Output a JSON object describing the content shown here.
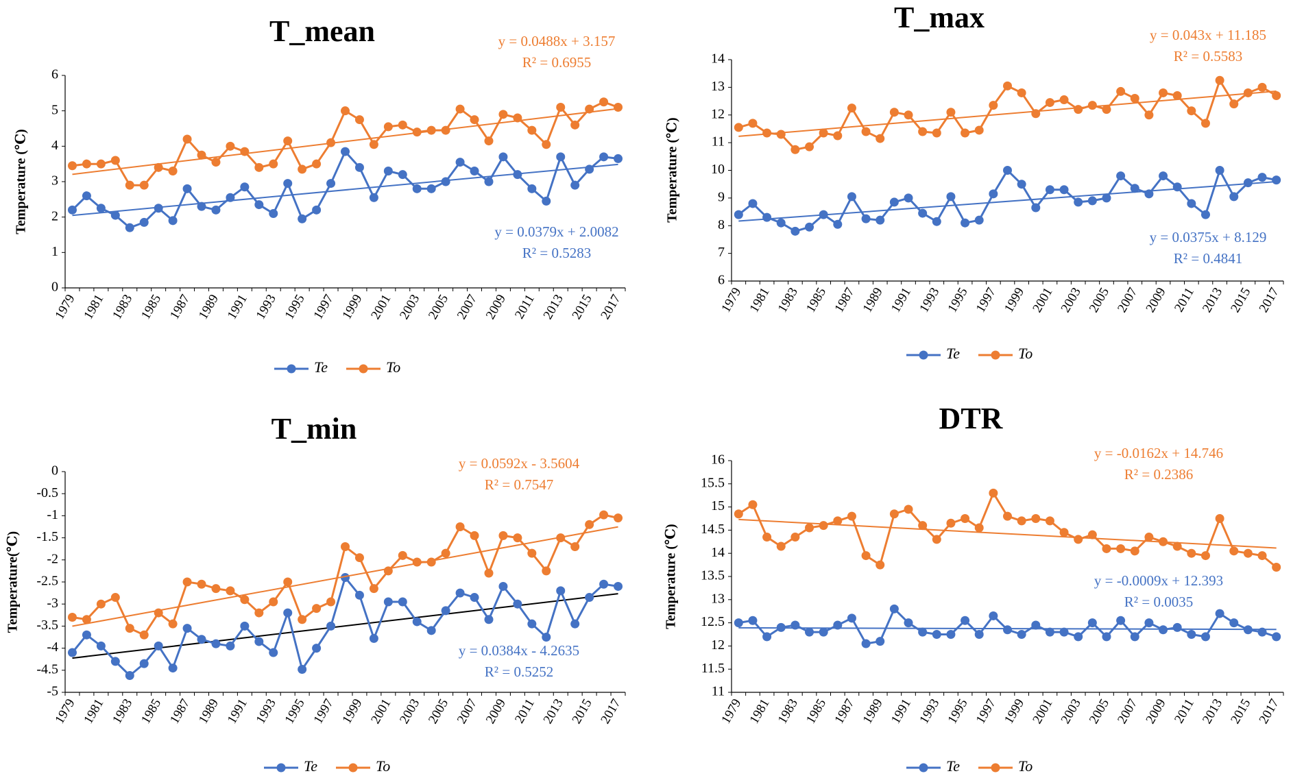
{
  "legend_labels": [
    "Te",
    "To"
  ],
  "chart_data": [
    {
      "type": "line",
      "title": "T_mean",
      "ylabel": "Temperature  (℃)",
      "ylim": [
        0,
        6
      ],
      "ytick_step": 1,
      "yticks": [
        "0",
        "1",
        "2",
        "3",
        "4",
        "5",
        "6"
      ],
      "xticks": [
        "1979",
        "1981",
        "1983",
        "1985",
        "1987",
        "1989",
        "1991",
        "1993",
        "1995",
        "1997",
        "1999",
        "2001",
        "2003",
        "2005",
        "2007",
        "2009",
        "2011",
        "2013",
        "2015",
        "2017"
      ],
      "x": [
        1979,
        1980,
        1981,
        1982,
        1983,
        1984,
        1985,
        1986,
        1987,
        1988,
        1989,
        1990,
        1991,
        1992,
        1993,
        1994,
        1995,
        1996,
        1997,
        1998,
        1999,
        2000,
        2001,
        2002,
        2003,
        2004,
        2005,
        2006,
        2007,
        2008,
        2009,
        2010,
        2011,
        2012,
        2013,
        2014,
        2015,
        2016,
        2017
      ],
      "legend": "bottom",
      "series": [
        {
          "name": "Te",
          "color": "#4472c4",
          "trend_color": "#4472c4",
          "values": [
            2.2,
            2.6,
            2.25,
            2.05,
            1.7,
            1.85,
            2.25,
            1.9,
            2.8,
            2.3,
            2.2,
            2.55,
            2.85,
            2.35,
            2.1,
            2.95,
            1.95,
            2.2,
            2.95,
            3.85,
            3.4,
            2.55,
            3.3,
            3.2,
            2.8,
            2.8,
            3.0,
            3.55,
            3.3,
            3.0,
            3.7,
            3.2,
            2.8,
            2.45,
            3.7,
            2.9,
            3.35,
            3.7,
            3.65
          ],
          "trend": {
            "slope": 0.0379,
            "intercept": 2.0082
          },
          "eq": "y = 0.0379x  + 2.0082",
          "r2": "R² = 0.5283"
        },
        {
          "name": "To",
          "color": "#ed7d31",
          "trend_color": "#ed7d31",
          "values": [
            3.45,
            3.5,
            3.5,
            3.6,
            2.9,
            2.9,
            3.4,
            3.3,
            4.2,
            3.75,
            3.55,
            4.0,
            3.85,
            3.4,
            3.5,
            4.15,
            3.35,
            3.5,
            4.1,
            5.0,
            4.75,
            4.05,
            4.55,
            4.6,
            4.4,
            4.45,
            4.45,
            5.05,
            4.75,
            4.15,
            4.9,
            4.8,
            4.45,
            4.05,
            5.1,
            4.6,
            5.05,
            5.25,
            5.1
          ],
          "trend": {
            "slope": 0.0488,
            "intercept": 3.157
          },
          "eq": "y = 0.0488x   + 3.157",
          "r2": "R² = 0.6955"
        }
      ]
    },
    {
      "type": "line",
      "title": "T_max",
      "ylabel": "Temperature  (℃)",
      "ylim": [
        6,
        14
      ],
      "ytick_step": 1,
      "yticks": [
        "6",
        "7",
        "8",
        "9",
        "10",
        "11",
        "12",
        "13",
        "14"
      ],
      "xticks": [
        "1979",
        "1981",
        "1983",
        "1985",
        "1987",
        "1989",
        "1991",
        "1993",
        "1995",
        "1997",
        "1999",
        "2001",
        "2003",
        "2005",
        "2007",
        "2009",
        "2011",
        "2013",
        "2015",
        "2017"
      ],
      "x": [
        1979,
        1980,
        1981,
        1982,
        1983,
        1984,
        1985,
        1986,
        1987,
        1988,
        1989,
        1990,
        1991,
        1992,
        1993,
        1994,
        1995,
        1996,
        1997,
        1998,
        1999,
        2000,
        2001,
        2002,
        2003,
        2004,
        2005,
        2006,
        2007,
        2008,
        2009,
        2010,
        2011,
        2012,
        2013,
        2014,
        2015,
        2016,
        2017
      ],
      "legend": "bottom",
      "series": [
        {
          "name": "Te",
          "color": "#4472c4",
          "trend_color": "#4472c4",
          "values": [
            8.4,
            8.8,
            8.3,
            8.1,
            7.8,
            7.95,
            8.4,
            8.05,
            9.05,
            8.25,
            8.2,
            8.85,
            9.0,
            8.45,
            8.15,
            9.05,
            8.1,
            8.2,
            9.15,
            10.0,
            9.5,
            8.65,
            9.3,
            9.3,
            8.85,
            8.9,
            9.0,
            9.8,
            9.35,
            9.15,
            9.8,
            9.4,
            8.8,
            8.4,
            10.0,
            9.05,
            9.55,
            9.75,
            9.65
          ],
          "trend": {
            "slope": 0.0375,
            "intercept": 8.129
          },
          "eq": "y = 0.0375x   + 8.129",
          "r2": "R² = 0.4841"
        },
        {
          "name": "To",
          "color": "#ed7d31",
          "trend_color": "#ed7d31",
          "values": [
            11.55,
            11.7,
            11.35,
            11.3,
            10.75,
            10.85,
            11.35,
            11.25,
            12.25,
            11.4,
            11.15,
            12.1,
            12.0,
            11.4,
            11.35,
            12.1,
            11.35,
            11.45,
            12.35,
            13.05,
            12.8,
            12.05,
            12.45,
            12.55,
            12.2,
            12.35,
            12.2,
            12.85,
            12.6,
            12.0,
            12.8,
            12.7,
            12.15,
            11.7,
            13.25,
            12.4,
            12.8,
            13.0,
            12.7
          ],
          "trend": {
            "slope": 0.043,
            "intercept": 11.185
          },
          "eq": "y = 0.043x   + 11.185",
          "r2": "R² = 0.5583"
        }
      ]
    },
    {
      "type": "line",
      "title": "T_min",
      "ylabel": "Temperature(℃)",
      "ylim": [
        -5,
        0
      ],
      "ytick_step": 0.5,
      "yticks": [
        "-5",
        "-4.5",
        "-4",
        "-3.5",
        "-3",
        "-2.5",
        "-2",
        "-1.5",
        "-1",
        "-0.5",
        "0"
      ],
      "xticks": [
        "1979",
        "1981",
        "1983",
        "1985",
        "1987",
        "1989",
        "1991",
        "1993",
        "1995",
        "1997",
        "1999",
        "2001",
        "2003",
        "2005",
        "2007",
        "2009",
        "2011",
        "2013",
        "2015",
        "2017"
      ],
      "x": [
        1979,
        1980,
        1981,
        1982,
        1983,
        1984,
        1985,
        1986,
        1987,
        1988,
        1989,
        1990,
        1991,
        1992,
        1993,
        1994,
        1995,
        1996,
        1997,
        1998,
        1999,
        2000,
        2001,
        2002,
        2003,
        2004,
        2005,
        2006,
        2007,
        2008,
        2009,
        2010,
        2011,
        2012,
        2013,
        2014,
        2015,
        2016,
        2017
      ],
      "legend": "bottom",
      "series": [
        {
          "name": "Te",
          "color": "#4472c4",
          "trend_color": "#000000",
          "values": [
            -4.1,
            -3.7,
            -3.95,
            -4.3,
            -4.62,
            -4.35,
            -3.95,
            -4.45,
            -3.55,
            -3.8,
            -3.9,
            -3.95,
            -3.5,
            -3.85,
            -4.1,
            -3.2,
            -4.48,
            -4.0,
            -3.5,
            -2.4,
            -2.8,
            -3.78,
            -2.95,
            -2.95,
            -3.4,
            -3.6,
            -3.15,
            -2.75,
            -2.85,
            -3.35,
            -2.6,
            -3.0,
            -3.45,
            -3.75,
            -2.7,
            -3.45,
            -2.85,
            -2.55,
            -2.6
          ],
          "trend": {
            "slope": 0.0384,
            "intercept": -4.2635
          },
          "eq": "y = 0.0384x   - 4.2635",
          "r2": "R² = 0.5252"
        },
        {
          "name": "To",
          "color": "#ed7d31",
          "trend_color": "#ed7d31",
          "values": [
            -3.3,
            -3.35,
            -3.0,
            -2.85,
            -3.55,
            -3.7,
            -3.2,
            -3.45,
            -2.5,
            -2.55,
            -2.65,
            -2.7,
            -2.9,
            -3.2,
            -2.95,
            -2.5,
            -3.35,
            -3.1,
            -2.95,
            -1.7,
            -1.95,
            -2.65,
            -2.25,
            -1.9,
            -2.05,
            -2.05,
            -1.85,
            -1.25,
            -1.45,
            -2.3,
            -1.45,
            -1.5,
            -1.85,
            -2.25,
            -1.5,
            -1.7,
            -1.2,
            -0.98,
            -1.05
          ],
          "trend": {
            "slope": 0.0592,
            "intercept": -3.5604
          },
          "eq": "y = 0.0592x   - 3.5604",
          "r2": "R² = 0.7547"
        }
      ]
    },
    {
      "type": "line",
      "title": "DTR",
      "ylabel": "Temperature  (℃)",
      "ylim": [
        11,
        16
      ],
      "ytick_step": 0.5,
      "yticks": [
        "11",
        "11.5",
        "12",
        "12.5",
        "13",
        "13.5",
        "14",
        "14.5",
        "15",
        "15.5",
        "16"
      ],
      "xticks": [
        "1979",
        "1981",
        "1983",
        "1985",
        "1987",
        "1989",
        "1991",
        "1993",
        "1995",
        "1997",
        "1999",
        "2001",
        "2003",
        "2005",
        "2007",
        "2009",
        "2011",
        "2013",
        "2015",
        "2017"
      ],
      "x": [
        1979,
        1980,
        1981,
        1982,
        1983,
        1984,
        1985,
        1986,
        1987,
        1988,
        1989,
        1990,
        1991,
        1992,
        1993,
        1994,
        1995,
        1996,
        1997,
        1998,
        1999,
        2000,
        2001,
        2002,
        2003,
        2004,
        2005,
        2006,
        2007,
        2008,
        2009,
        2010,
        2011,
        2012,
        2013,
        2014,
        2015,
        2016,
        2017
      ],
      "legend": "bottom",
      "series": [
        {
          "name": "Te",
          "color": "#4472c4",
          "trend_color": "#4472c4",
          "values": [
            12.5,
            12.55,
            12.2,
            12.4,
            12.45,
            12.3,
            12.3,
            12.45,
            12.6,
            12.05,
            12.1,
            12.8,
            12.5,
            12.3,
            12.25,
            12.25,
            12.55,
            12.25,
            12.65,
            12.35,
            12.25,
            12.45,
            12.3,
            12.3,
            12.2,
            12.5,
            12.2,
            12.55,
            12.2,
            12.5,
            12.35,
            12.4,
            12.25,
            12.2,
            12.7,
            12.5,
            12.35,
            12.3,
            12.2
          ],
          "trend": {
            "slope": -0.0009,
            "intercept": 12.393
          },
          "eq": "y = -0.0009x  + 12.393",
          "r2": "R² = 0.0035"
        },
        {
          "name": "To",
          "color": "#ed7d31",
          "trend_color": "#ed7d31",
          "values": [
            14.85,
            15.05,
            14.35,
            14.15,
            14.35,
            14.55,
            14.6,
            14.7,
            14.8,
            13.95,
            13.75,
            14.85,
            14.95,
            14.6,
            14.3,
            14.65,
            14.75,
            14.55,
            15.3,
            14.8,
            14.7,
            14.75,
            14.7,
            14.45,
            14.3,
            14.4,
            14.1,
            14.1,
            14.05,
            14.35,
            14.25,
            14.15,
            14.0,
            13.95,
            14.75,
            14.05,
            14.0,
            13.95,
            13.7
          ],
          "trend": {
            "slope": -0.0162,
            "intercept": 14.746
          },
          "eq": "y = -0.0162x  + 14.746",
          "r2": "R² = 0.2386"
        }
      ]
    }
  ]
}
